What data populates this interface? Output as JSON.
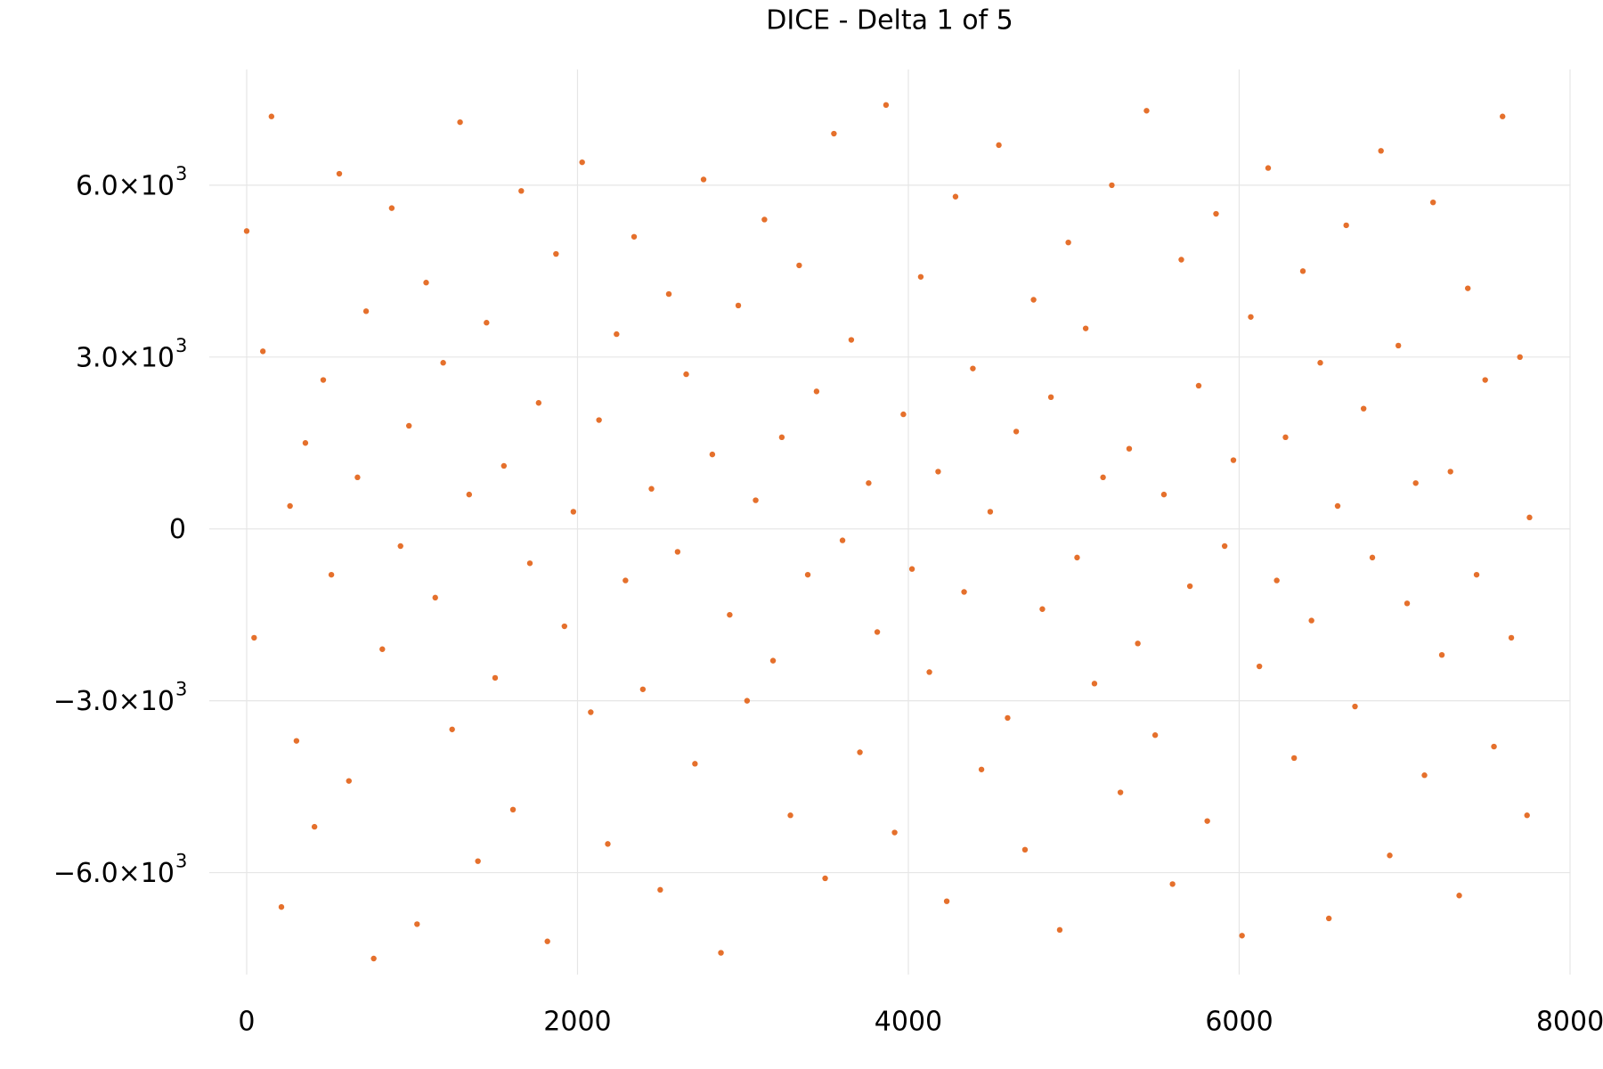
{
  "chart_data": {
    "type": "scatter",
    "title": "DICE - Delta 1 of 5",
    "color": "#e5702c",
    "grid": true,
    "xlim": [
      -226,
      8000
    ],
    "xticks": [
      0,
      2000,
      4000,
      6000,
      8000
    ],
    "ylim": [
      -7780,
      8020
    ],
    "yticks": [
      {
        "value": -6000,
        "label": "−6.0×10",
        "exponent": "3"
      },
      {
        "value": -3000,
        "label": "−3.0×10",
        "exponent": "3"
      },
      0,
      {
        "value": 3000,
        "label": "3.0×10",
        "exponent": "3"
      },
      {
        "value": 6000,
        "label": "6.0×10",
        "exponent": "3"
      }
    ],
    "x": [
      0,
      45,
      98,
      150,
      210,
      262,
      301,
      355,
      410,
      463,
      512,
      560,
      618,
      670,
      722,
      768,
      820,
      877,
      930,
      981,
      1030,
      1085,
      1140,
      1188,
      1242,
      1290,
      1345,
      1398,
      1450,
      1502,
      1555,
      1610,
      1660,
      1712,
      1765,
      1818,
      1870,
      1921,
      1975,
      2028,
      2080,
      2130,
      2183,
      2236,
      2290,
      2342,
      2395,
      2447,
      2500,
      2552,
      2605,
      2657,
      2710,
      2762,
      2815,
      2867,
      2920,
      2972,
      3025,
      3077,
      3130,
      3182,
      3235,
      3287,
      3340,
      3392,
      3445,
      3497,
      3550,
      3602,
      3655,
      3707,
      3760,
      3812,
      3865,
      3917,
      3970,
      4022,
      4075,
      4127,
      4180,
      4232,
      4285,
      4337,
      4390,
      4442,
      4495,
      4547,
      4600,
      4652,
      4705,
      4757,
      4810,
      4862,
      4915,
      4967,
      5020,
      5072,
      5125,
      5177,
      5230,
      5282,
      5335,
      5387,
      5440,
      5492,
      5545,
      5597,
      5650,
      5702,
      5755,
      5807,
      5860,
      5912,
      5965,
      6017,
      6070,
      6122,
      6175,
      6227,
      6280,
      6332,
      6385,
      6437,
      6490,
      6542,
      6595,
      6647,
      6700,
      6752,
      6805,
      6857,
      6910,
      6962,
      7015,
      7067,
      7120,
      7172,
      7225,
      7277,
      7330,
      7382,
      7435,
      7487,
      7540,
      7592,
      7645,
      7697,
      7740,
      7755
    ],
    "values": [
      5200,
      -1900,
      3100,
      7200,
      -6600,
      400,
      -3700,
      1500,
      -5200,
      2600,
      -800,
      6200,
      -4400,
      900,
      3800,
      -7500,
      -2100,
      5600,
      -300,
      1800,
      -6900,
      4300,
      -1200,
      2900,
      -3500,
      7100,
      600,
      -5800,
      3600,
      -2600,
      1100,
      -4900,
      5900,
      -600,
      2200,
      -7200,
      4800,
      -1700,
      300,
      6400,
      -3200,
      1900,
      -5500,
      3400,
      -900,
      5100,
      -2800,
      700,
      -6300,
      4100,
      -400,
      2700,
      -4100,
      6100,
      1300,
      -7400,
      -1500,
      3900,
      -3000,
      500,
      5400,
      -2300,
      1600,
      -5000,
      4600,
      -800,
      2400,
      -6100,
      6900,
      -200,
      3300,
      -3900,
      800,
      -1800,
      7400,
      -5300,
      2000,
      -700,
      4400,
      -2500,
      1000,
      -6500,
      5800,
      -1100,
      2800,
      -4200,
      300,
      6700,
      -3300,
      1700,
      -5600,
      4000,
      -1400,
      2300,
      -7000,
      5000,
      -500,
      3500,
      -2700,
      900,
      6000,
      -4600,
      1400,
      -2000,
      7300,
      -3600,
      600,
      -6200,
      4700,
      -1000,
      2500,
      -5100,
      5500,
      -300,
      1200,
      -7100,
      3700,
      -2400,
      6300,
      -900,
      1600,
      -4000,
      4500,
      -1600,
      2900,
      -6800,
      400,
      5300,
      -3100,
      2100,
      -500,
      6600,
      -5700,
      3200,
      -1300,
      800,
      -4300,
      5700,
      -2200,
      1000,
      -6400,
      4200,
      -800,
      2600,
      -3800,
      7200,
      -1900,
      3000,
      -5000,
      200
    ]
  }
}
